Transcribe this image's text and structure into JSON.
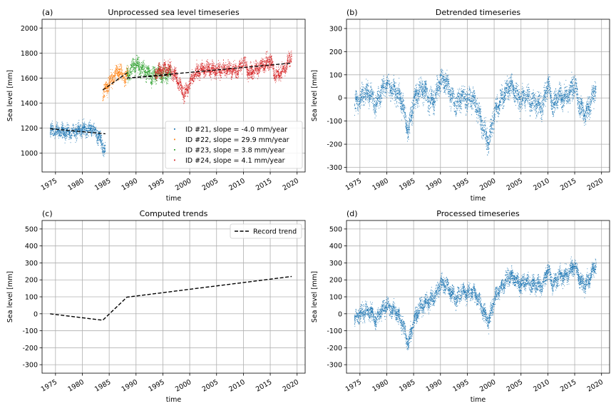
{
  "colors": {
    "c21": "#1f77b4",
    "c22": "#ff7f0e",
    "c23": "#2ca02c",
    "c24": "#d62728",
    "trend": "#000000",
    "grid": "#b0b0b0"
  },
  "chart_data": [
    {
      "panel": "a",
      "letter": "(a)",
      "type": "scatter",
      "title": "Unprocessed sea level timeseries",
      "xlabel": "time",
      "ylabel": "Sea level [mm]",
      "xlim": [
        1972.5,
        2021.5
      ],
      "ylim": [
        850,
        2070
      ],
      "xticks": [
        1975,
        1980,
        1985,
        1990,
        1995,
        2000,
        2005,
        2010,
        2015,
        2020
      ],
      "yticks": [
        1000,
        1200,
        1400,
        1600,
        1800,
        2000
      ],
      "legend_position": "lower-right",
      "grid": true,
      "series": [
        {
          "name": "ID #21, slope = -4.0 mm/year",
          "color_key": "c21",
          "x_range": [
            1974,
            1984.3
          ],
          "trend_line": [
            [
              1974,
              1195
            ],
            [
              1984.3,
              1155
            ]
          ],
          "level_points": [
            [
              1974,
              1180
            ],
            [
              1976,
              1175
            ],
            [
              1978,
              1165
            ],
            [
              1980,
              1190
            ],
            [
              1982,
              1195
            ],
            [
              1983.5,
              1100
            ],
            [
              1984.2,
              1010
            ]
          ],
          "noise": 55
        },
        {
          "name": "ID #22, slope = 29.9 mm/year",
          "color_key": "c22",
          "x_range": [
            1983.8,
            1988.6
          ],
          "trend_line": [
            [
              1983.8,
              1505
            ],
            [
              1988.6,
              1650
            ]
          ],
          "level_points": [
            [
              1983.8,
              1470
            ],
            [
              1985,
              1560
            ],
            [
              1986,
              1620
            ],
            [
              1987,
              1660
            ],
            [
              1988,
              1600
            ],
            [
              1988.6,
              1650
            ]
          ],
          "noise": 55
        },
        {
          "name": "ID #23, slope =  3.8 mm/year",
          "color_key": "c23",
          "x_range": [
            1988.3,
            1996.5
          ],
          "trend_line": [
            [
              1988.3,
              1600
            ],
            [
              1996.5,
              1625
            ]
          ],
          "level_points": [
            [
              1988.3,
              1610
            ],
            [
              1989,
              1660
            ],
            [
              1990,
              1720
            ],
            [
              1991,
              1680
            ],
            [
              1992,
              1650
            ],
            [
              1993,
              1610
            ],
            [
              1994,
              1650
            ],
            [
              1995,
              1620
            ],
            [
              1996.5,
              1640
            ]
          ],
          "noise": 60
        },
        {
          "name": "ID #24, slope =  4.1 mm/year",
          "color_key": "c24",
          "x_range": [
            1993.5,
            2019
          ],
          "trend_line": [
            [
              1988.3,
              1600
            ],
            [
              2019,
              1720
            ]
          ],
          "level_points": [
            [
              1993.5,
              1640
            ],
            [
              1996,
              1680
            ],
            [
              1997,
              1640
            ],
            [
              1998,
              1560
            ],
            [
              1999,
              1460
            ],
            [
              2000,
              1560
            ],
            [
              2001,
              1640
            ],
            [
              2003,
              1680
            ],
            [
              2005,
              1660
            ],
            [
              2007,
              1670
            ],
            [
              2009,
              1660
            ],
            [
              2010,
              1740
            ],
            [
              2011,
              1640
            ],
            [
              2013,
              1690
            ],
            [
              2015,
              1740
            ],
            [
              2016,
              1620
            ],
            [
              2017,
              1640
            ],
            [
              2018,
              1700
            ],
            [
              2019,
              1790
            ]
          ],
          "noise": 55
        }
      ]
    },
    {
      "panel": "b",
      "letter": "(b)",
      "type": "scatter",
      "title": "Detrended timeseries",
      "xlabel": "time",
      "ylabel": "Sea level [mm]",
      "xlim": [
        1972.5,
        2021.5
      ],
      "ylim": [
        -320,
        340
      ],
      "xticks": [
        1975,
        1980,
        1985,
        1990,
        1995,
        2000,
        2005,
        2010,
        2015,
        2020
      ],
      "yticks": [
        -300,
        -200,
        -100,
        0,
        100,
        200,
        300
      ],
      "grid": true,
      "series": [
        {
          "color_key": "c21",
          "x_range": [
            1974,
            2019
          ],
          "level_points": [
            [
              1974,
              -30
            ],
            [
              1975,
              0
            ],
            [
              1976,
              20
            ],
            [
              1977,
              20
            ],
            [
              1978,
              -30
            ],
            [
              1979,
              30
            ],
            [
              1980,
              60
            ],
            [
              1981,
              40
            ],
            [
              1982,
              20
            ],
            [
              1983,
              -30
            ],
            [
              1984,
              -150
            ],
            [
              1985,
              -20
            ],
            [
              1986,
              30
            ],
            [
              1987,
              40
            ],
            [
              1988,
              -20
            ],
            [
              1989,
              0
            ],
            [
              1990,
              80
            ],
            [
              1991,
              70
            ],
            [
              1992,
              10
            ],
            [
              1993,
              -30
            ],
            [
              1994,
              10
            ],
            [
              1995,
              -10
            ],
            [
              1996,
              0
            ],
            [
              1997,
              -50
            ],
            [
              1998,
              -130
            ],
            [
              1999,
              -200
            ],
            [
              2000,
              -70
            ],
            [
              2001,
              -20
            ],
            [
              2002,
              20
            ],
            [
              2003,
              60
            ],
            [
              2004,
              20
            ],
            [
              2005,
              -10
            ],
            [
              2006,
              10
            ],
            [
              2007,
              -20
            ],
            [
              2008,
              -20
            ],
            [
              2009,
              -40
            ],
            [
              2010,
              60
            ],
            [
              2011,
              -40
            ],
            [
              2012,
              10
            ],
            [
              2013,
              0
            ],
            [
              2014,
              20
            ],
            [
              2015,
              60
            ],
            [
              2016,
              -40
            ],
            [
              2017,
              -70
            ],
            [
              2018,
              -20
            ],
            [
              2019,
              50
            ]
          ],
          "noise": 45
        }
      ]
    },
    {
      "panel": "c",
      "letter": "(c)",
      "type": "line",
      "title": "Computed trends",
      "xlabel": "time",
      "ylabel": "Sea level [mm]",
      "xlim": [
        1972.5,
        2021.5
      ],
      "ylim": [
        -350,
        550
      ],
      "xticks": [
        1975,
        1980,
        1985,
        1990,
        1995,
        2000,
        2005,
        2010,
        2015,
        2020
      ],
      "yticks": [
        -300,
        -200,
        -100,
        0,
        100,
        200,
        300,
        400,
        500
      ],
      "legend_position": "upper-right",
      "grid": true,
      "series": [
        {
          "name": "Record trend",
          "color_key": "trend",
          "x": [
            1974,
            1983.8,
            1988.3,
            2019
          ],
          "y": [
            0,
            -38,
            98,
            220
          ]
        }
      ]
    },
    {
      "panel": "d",
      "letter": "(d)",
      "type": "scatter",
      "title": "Processed timeseries",
      "xlabel": "time",
      "ylabel": "Sea level [mm]",
      "xlim": [
        1972.5,
        2021.5
      ],
      "ylim": [
        -350,
        550
      ],
      "xticks": [
        1975,
        1980,
        1985,
        1990,
        1995,
        2000,
        2005,
        2010,
        2015,
        2020
      ],
      "yticks": [
        -300,
        -200,
        -100,
        0,
        100,
        200,
        300,
        400,
        500
      ],
      "grid": true,
      "series": [
        {
          "color_key": "c21",
          "x_range": [
            1974,
            2019
          ],
          "level_points": [
            [
              1974,
              -30
            ],
            [
              1975,
              0
            ],
            [
              1976,
              15
            ],
            [
              1977,
              15
            ],
            [
              1978,
              -40
            ],
            [
              1979,
              20
            ],
            [
              1980,
              50
            ],
            [
              1981,
              25
            ],
            [
              1982,
              0
            ],
            [
              1983,
              -60
            ],
            [
              1984,
              -180
            ],
            [
              1985,
              -50
            ],
            [
              1986,
              30
            ],
            [
              1987,
              60
            ],
            [
              1988,
              80
            ],
            [
              1989,
              100
            ],
            [
              1990,
              180
            ],
            [
              1991,
              175
            ],
            [
              1992,
              120
            ],
            [
              1993,
              90
            ],
            [
              1994,
              135
            ],
            [
              1995,
              120
            ],
            [
              1996,
              135
            ],
            [
              1997,
              90
            ],
            [
              1998,
              15
            ],
            [
              1999,
              -50
            ],
            [
              2000,
              85
            ],
            [
              2001,
              140
            ],
            [
              2002,
              185
            ],
            [
              2003,
              230
            ],
            [
              2004,
              195
            ],
            [
              2005,
              170
            ],
            [
              2006,
              195
            ],
            [
              2007,
              170
            ],
            [
              2008,
              175
            ],
            [
              2009,
              160
            ],
            [
              2010,
              265
            ],
            [
              2011,
              170
            ],
            [
              2012,
              225
            ],
            [
              2013,
              220
            ],
            [
              2014,
              245
            ],
            [
              2015,
              290
            ],
            [
              2016,
              195
            ],
            [
              2017,
              170
            ],
            [
              2018,
              225
            ],
            [
              2019,
              300
            ]
          ],
          "noise": 45
        }
      ]
    }
  ]
}
